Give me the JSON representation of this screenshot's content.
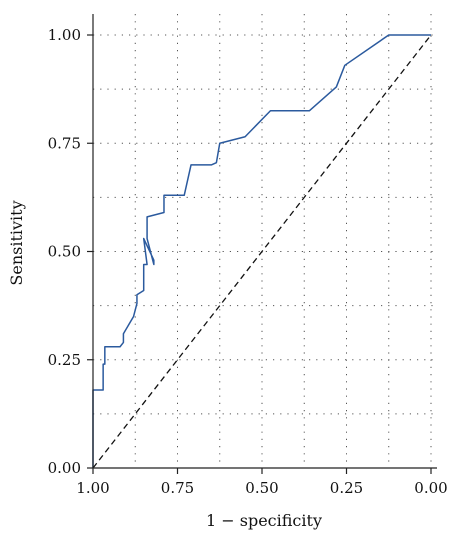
{
  "chart_data": {
    "type": "line",
    "title": "",
    "xlabel": "1 − specificity",
    "ylabel": "Sensitivity",
    "xlim": [
      1.0,
      0.0
    ],
    "ylim": [
      0.0,
      1.0
    ],
    "x_reversed": true,
    "grid": true,
    "x_ticks": [
      "1.00",
      "0.75",
      "0.50",
      "0.25",
      "0.00"
    ],
    "y_ticks": [
      "0.00",
      "0.25",
      "0.50",
      "0.75",
      "1.00"
    ],
    "x_tick_values": [
      1.0,
      0.75,
      0.5,
      0.25,
      0.0
    ],
    "y_tick_values": [
      0.0,
      0.25,
      0.5,
      0.75,
      1.0
    ],
    "x_grid_values": [
      1.0,
      0.875,
      0.75,
      0.625,
      0.5,
      0.375,
      0.25,
      0.125,
      0.0
    ],
    "y_grid_values": [
      0.0,
      0.125,
      0.25,
      0.375,
      0.5,
      0.625,
      0.75,
      0.875,
      1.0
    ],
    "series": [
      {
        "style": "solid",
        "color": "#2b5a9e",
        "x": [
          1.0,
          1.0,
          0.97,
          0.97,
          0.965,
          0.965,
          0.92,
          0.91,
          0.91,
          0.88,
          0.88,
          0.87,
          0.87,
          0.85,
          0.85,
          0.84,
          0.85,
          0.82,
          0.82,
          0.84,
          0.84,
          0.79,
          0.79,
          0.73,
          0.71,
          0.65,
          0.635,
          0.625,
          0.55,
          0.475,
          0.36,
          0.28,
          0.255,
          0.125,
          0.0
        ],
        "y": [
          0.0,
          0.18,
          0.18,
          0.24,
          0.24,
          0.28,
          0.28,
          0.29,
          0.31,
          0.35,
          0.35,
          0.38,
          0.4,
          0.41,
          0.47,
          0.47,
          0.53,
          0.48,
          0.47,
          0.53,
          0.58,
          0.59,
          0.63,
          0.63,
          0.7,
          0.7,
          0.705,
          0.75,
          0.765,
          0.825,
          0.825,
          0.88,
          0.93,
          1.0,
          1.0
        ]
      },
      {
        "style": "dashed",
        "color": "#111111",
        "x": [
          1.0,
          0.0
        ],
        "y": [
          0.0,
          1.0
        ]
      }
    ]
  }
}
